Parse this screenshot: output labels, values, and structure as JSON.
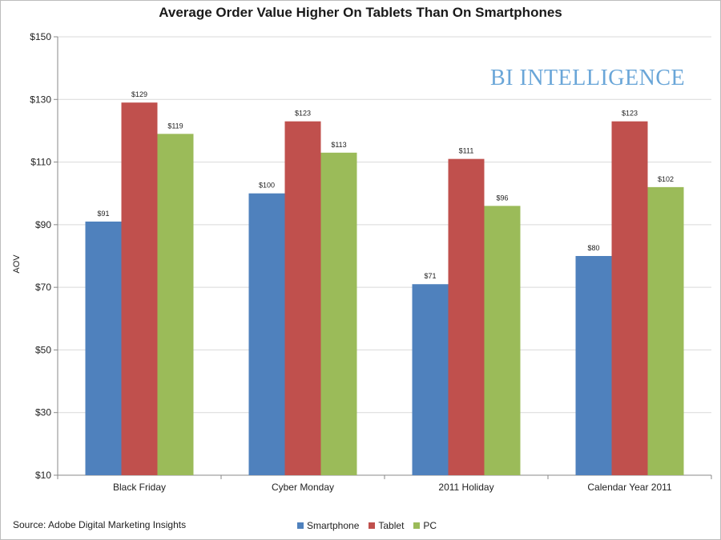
{
  "chart_data": {
    "type": "bar",
    "title": "Average Order Value Higher On Tablets Than On Smartphones",
    "ylabel": "AOV",
    "xlabel": "",
    "ylim": [
      10,
      150
    ],
    "yticks": [
      "$10",
      "$30",
      "$50",
      "$70",
      "$90",
      "$110",
      "$130",
      "$150"
    ],
    "ytick_values": [
      10,
      30,
      50,
      70,
      90,
      110,
      130,
      150
    ],
    "categories": [
      "Black Friday",
      "Cyber Monday",
      "2011 Holiday",
      "Calendar Year 2011"
    ],
    "series": [
      {
        "name": "Smartphone",
        "color": "#4f81bd",
        "values": [
          91,
          100,
          71,
          80
        ],
        "labels": [
          "$91",
          "$100",
          "$71",
          "$80"
        ]
      },
      {
        "name": "Tablet",
        "color": "#c0504d",
        "values": [
          129,
          123,
          111,
          123
        ],
        "labels": [
          "$129",
          "$123",
          "$111",
          "$123"
        ]
      },
      {
        "name": "PC",
        "color": "#9bbb59",
        "values": [
          119,
          113,
          96,
          102
        ],
        "labels": [
          "$119",
          "$113",
          "$96",
          "$102"
        ]
      }
    ],
    "grid": true,
    "legend": "bottom"
  },
  "watermark": "BI INTELLIGENCE",
  "source": "Source: Adobe Digital Marketing Insights"
}
